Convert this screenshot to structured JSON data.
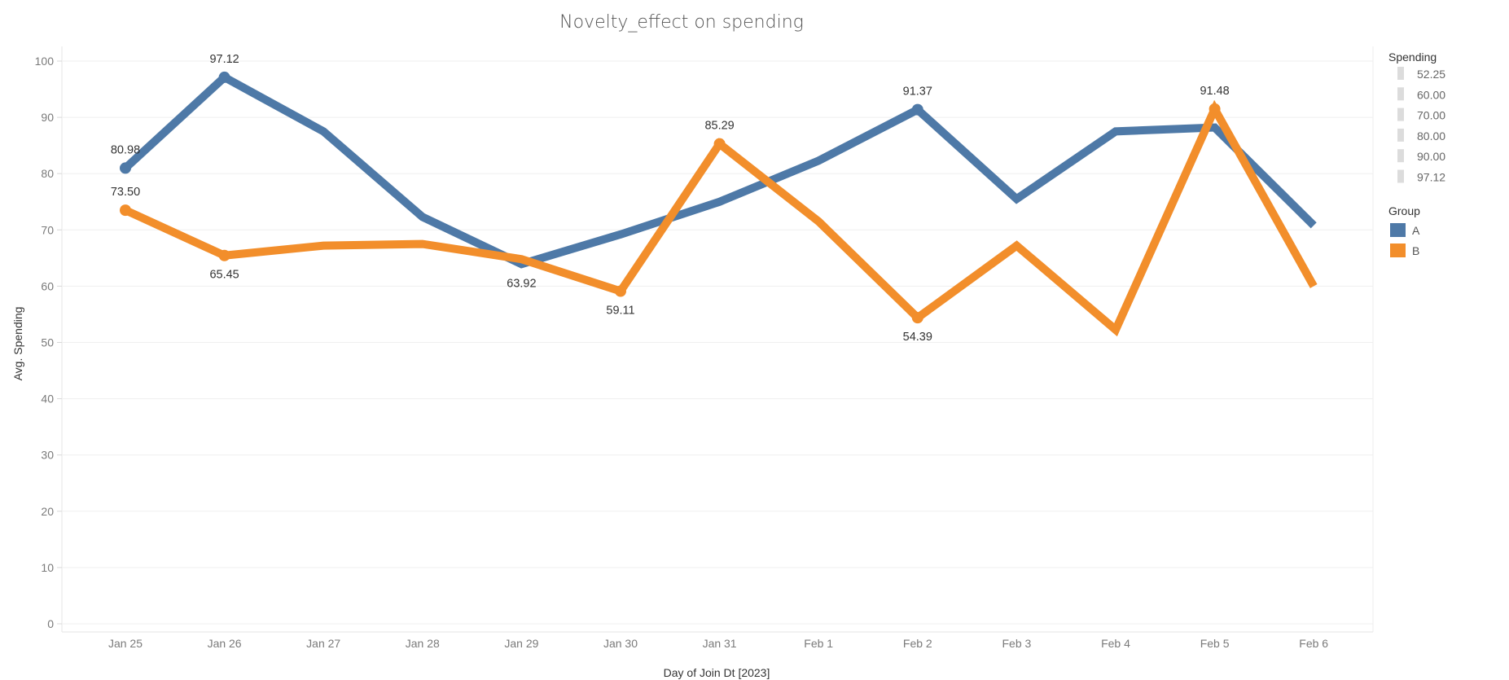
{
  "chart_data": {
    "type": "line",
    "title": "Novelty_effect on spending",
    "xlabel": "Day of Join Dt [2023]",
    "ylabel": "Avg. Spending",
    "categories": [
      "Jan 25",
      "Jan 26",
      "Jan 27",
      "Jan 28",
      "Jan 29",
      "Jan 30",
      "Jan 31",
      "Feb 1",
      "Feb 2",
      "Feb 3",
      "Feb 4",
      "Feb 5",
      "Feb 6"
    ],
    "ylim": [
      0,
      100
    ],
    "yticks": [
      0,
      10,
      20,
      30,
      40,
      50,
      60,
      70,
      80,
      90,
      100
    ],
    "grid": true,
    "legend_position": "right",
    "series": [
      {
        "name": "A",
        "color": "#4e79a7",
        "values": [
          80.98,
          97.12,
          87.5,
          72.3,
          63.92,
          69.2,
          75.0,
          82.3,
          91.37,
          75.5,
          87.5,
          88.2,
          70.8
        ],
        "labels": [
          "80.98",
          "97.12",
          "",
          "",
          "",
          "",
          "",
          "",
          "91.37",
          "",
          "",
          "",
          ""
        ]
      },
      {
        "name": "B",
        "color": "#f28e2b",
        "values": [
          73.5,
          65.45,
          67.2,
          67.5,
          64.8,
          59.11,
          85.29,
          71.5,
          54.39,
          67.2,
          52.25,
          91.48,
          60.0
        ],
        "labels": [
          "73.50",
          "65.45",
          "",
          "",
          "",
          "59.11",
          "85.29",
          "",
          "54.39",
          "",
          "",
          "91.48",
          ""
        ]
      }
    ],
    "point_labels": [
      {
        "series": 0,
        "index": 0,
        "text": "80.98",
        "pos": "above"
      },
      {
        "series": 1,
        "index": 0,
        "text": "73.50",
        "pos": "above"
      },
      {
        "series": 0,
        "index": 1,
        "text": "97.12",
        "pos": "above"
      },
      {
        "series": 1,
        "index": 1,
        "text": "65.45",
        "pos": "below"
      },
      {
        "series": 0,
        "index": 4,
        "text": "63.92",
        "pos": "below"
      },
      {
        "series": 1,
        "index": 5,
        "text": "59.11",
        "pos": "below"
      },
      {
        "series": 1,
        "index": 6,
        "text": "85.29",
        "pos": "above"
      },
      {
        "series": 0,
        "index": 8,
        "text": "91.37",
        "pos": "above"
      },
      {
        "series": 1,
        "index": 8,
        "text": "54.39",
        "pos": "below"
      },
      {
        "series": 1,
        "index": 11,
        "text": "91.48",
        "pos": "above"
      }
    ],
    "size_legend": {
      "title": "Spending",
      "items": [
        "52.25",
        "60.00",
        "70.00",
        "80.00",
        "90.00",
        "97.12"
      ]
    },
    "color_legend": {
      "title": "Group",
      "items": [
        {
          "label": "A",
          "color": "#4e79a7"
        },
        {
          "label": "B",
          "color": "#f28e2b"
        }
      ]
    }
  }
}
